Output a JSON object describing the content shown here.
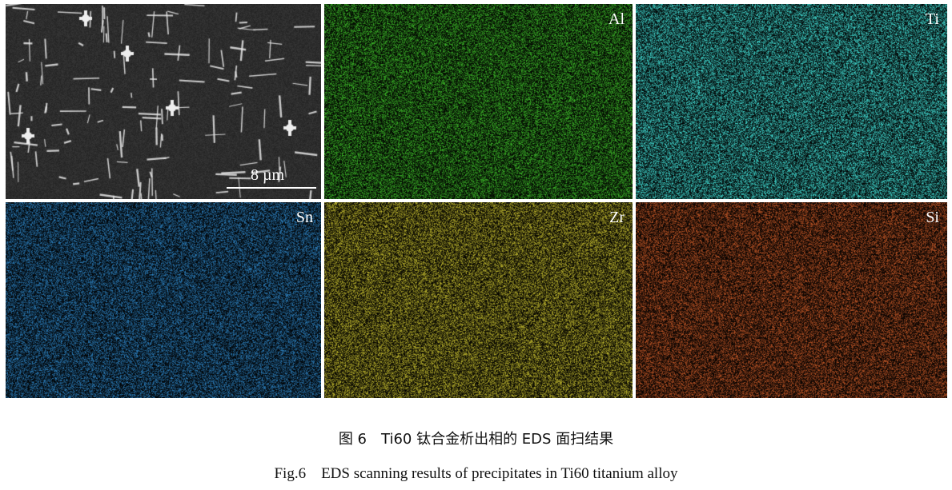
{
  "figure": {
    "panels": [
      {
        "id": "sem",
        "label": "",
        "type": "sem-image",
        "scale_bar": "8 µm",
        "color": "#2a2a2a"
      },
      {
        "id": "al",
        "label": "Al",
        "type": "eds-map",
        "color": "#3fbf2a"
      },
      {
        "id": "ti",
        "label": "Ti",
        "type": "eds-map",
        "color": "#3cc8c0"
      },
      {
        "id": "sn",
        "label": "Sn",
        "type": "eds-map",
        "color": "#2e86c8"
      },
      {
        "id": "zr",
        "label": "Zr",
        "type": "eds-map",
        "color": "#c8c030"
      },
      {
        "id": "si",
        "label": "Si",
        "type": "eds-map",
        "color": "#c85a28"
      }
    ],
    "caption_cn": "图 6　Ti60 钛合金析出相的 EDS 面扫结果",
    "caption_en": "Fig.6　EDS scanning results of precipitates in Ti60 titanium alloy"
  }
}
